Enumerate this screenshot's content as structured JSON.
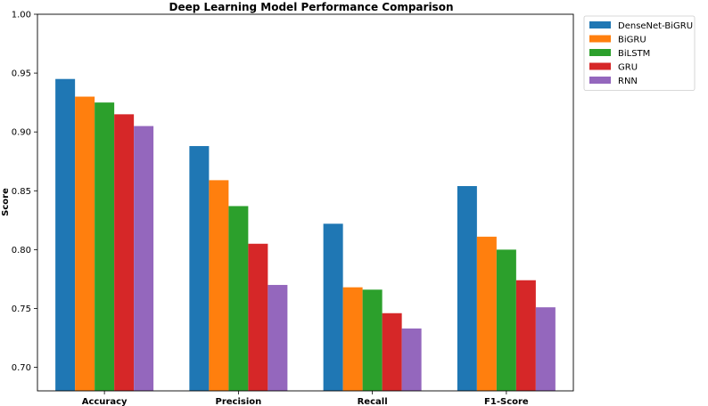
{
  "chart_data": {
    "type": "bar",
    "title": "Deep Learning Model Performance Comparison",
    "xlabel": "",
    "ylabel": "Score",
    "categories": [
      "Accuracy",
      "Precision",
      "Recall",
      "F1-Score"
    ],
    "ylim": [
      0.68,
      1.0
    ],
    "yticks": [
      "0.70",
      "0.75",
      "0.80",
      "0.85",
      "0.90",
      "0.95",
      "1.00"
    ],
    "grid": false,
    "legend_position": "outside-right",
    "series": [
      {
        "name": "DenseNet-BiGRU",
        "color": "#1f77b4",
        "values": [
          0.945,
          0.888,
          0.822,
          0.854
        ]
      },
      {
        "name": "BiGRU",
        "color": "#ff7f0e",
        "values": [
          0.93,
          0.859,
          0.768,
          0.811
        ]
      },
      {
        "name": "BiLSTM",
        "color": "#2ca02c",
        "values": [
          0.925,
          0.837,
          0.766,
          0.8
        ]
      },
      {
        "name": "GRU",
        "color": "#d62728",
        "values": [
          0.915,
          0.805,
          0.746,
          0.774
        ]
      },
      {
        "name": "RNN",
        "color": "#9467bd",
        "values": [
          0.905,
          0.77,
          0.733,
          0.751
        ]
      }
    ]
  }
}
